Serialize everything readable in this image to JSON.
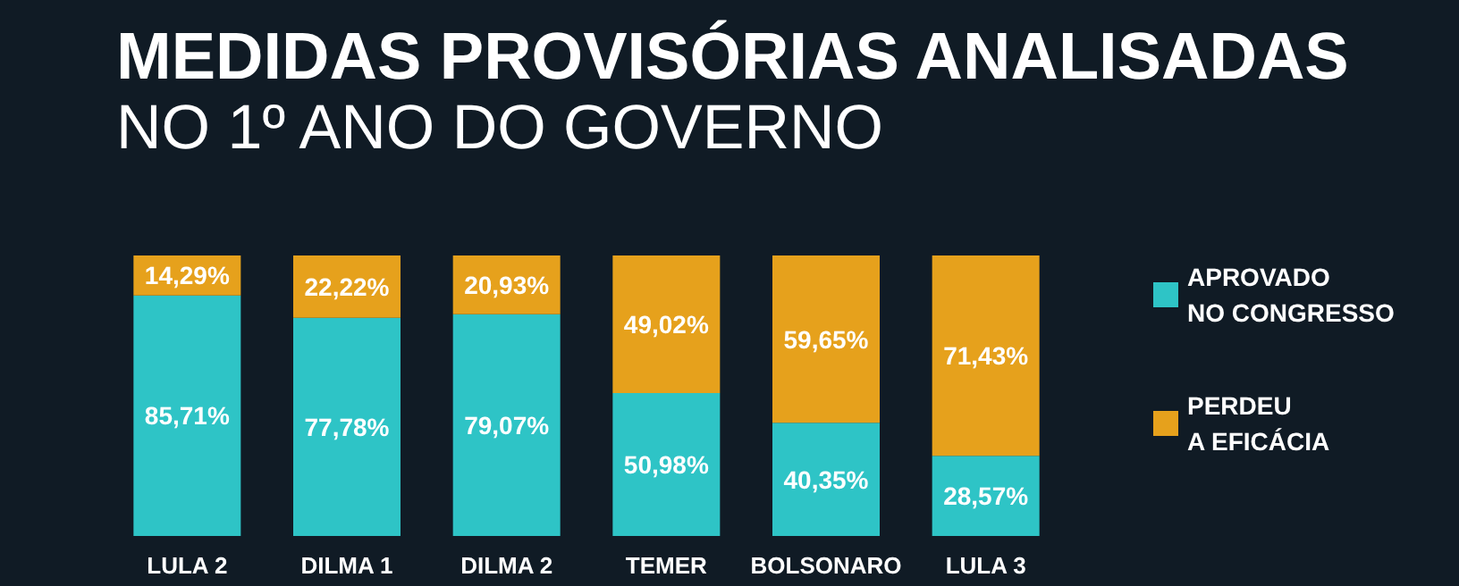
{
  "chart_data": {
    "type": "bar",
    "title": "MEDIDAS PROVISÓRIAS ANALISADAS",
    "subtitle": "NO 1º ANO DO GOVERNO",
    "categories": [
      "LULA 2",
      "DILMA 1",
      "DILMA 2",
      "TEMER",
      "BOLSONARO",
      "LULA 3"
    ],
    "stacked": true,
    "ylim": [
      0,
      100
    ],
    "legend": "right",
    "grid": false,
    "series": [
      {
        "name": "APROVADO\nNO CONGRESSO",
        "color": "#2ec4c6",
        "values": [
          85.71,
          77.78,
          79.07,
          50.98,
          40.35,
          28.57
        ],
        "value_labels": [
          "85,71%",
          "77,78%",
          "79,07%",
          "50,98%",
          "40,35%",
          "28,57%"
        ]
      },
      {
        "name": "PERDEU\nA EFICÁCIA",
        "color": "#e6a11c",
        "values": [
          14.29,
          22.22,
          20.93,
          49.02,
          59.65,
          71.43
        ],
        "value_labels": [
          "14,29%",
          "22,22%",
          "20,93%",
          "49,02%",
          "59,65%",
          "71,43%"
        ]
      }
    ]
  }
}
